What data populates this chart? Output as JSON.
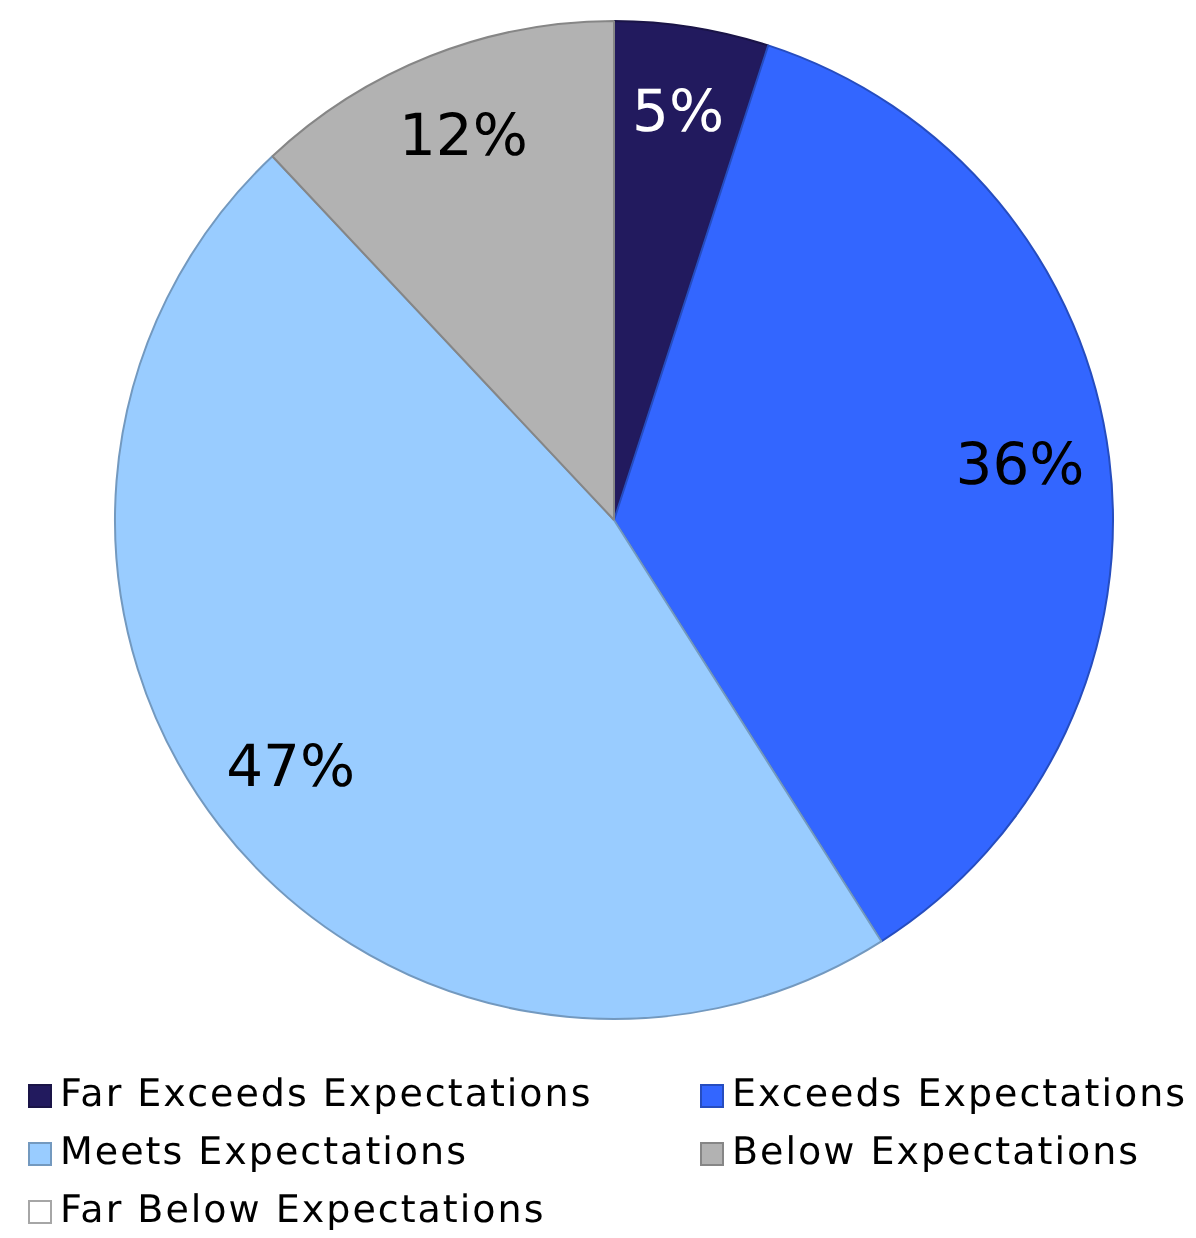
{
  "chart_data": {
    "type": "pie",
    "categories": [
      "Far Exceeds Expectations",
      "Exceeds Expectations",
      "Meets Expectations",
      "Below Expectations",
      "Far Below Expectations"
    ],
    "values": [
      5,
      36,
      47,
      12,
      0
    ],
    "colors": [
      "#221a5e",
      "#3366ff",
      "#99ccff",
      "#b2b2b2",
      "#ffffff"
    ],
    "value_labels": [
      "5%",
      "36%",
      "47%",
      "12%",
      null
    ],
    "legend": "bottom"
  }
}
